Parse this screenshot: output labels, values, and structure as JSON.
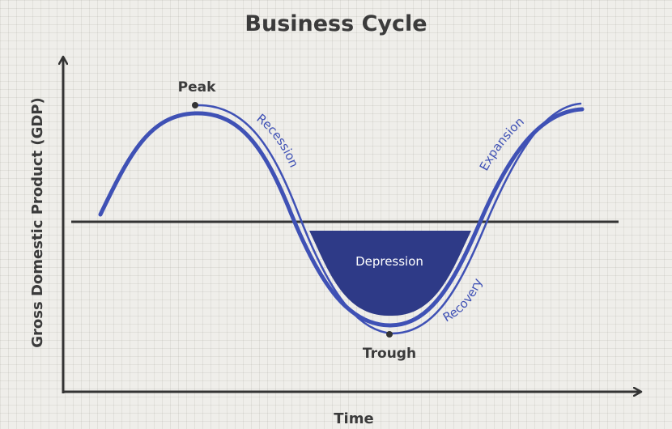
{
  "title": "Business Cycle",
  "y_axis_label": "Gross Domestic Product (GDP)",
  "x_axis_label": "Time",
  "labels": {
    "peak": "Peak",
    "trough": "Trough",
    "depression": "Depression",
    "recession": "Recession",
    "recovery": "Recovery",
    "expansion": "Expansion"
  },
  "colors": {
    "curve": "#3f51b5",
    "depression_fill": "#2e3a87",
    "axis": "#333333",
    "text": "#3b3b3b"
  }
}
